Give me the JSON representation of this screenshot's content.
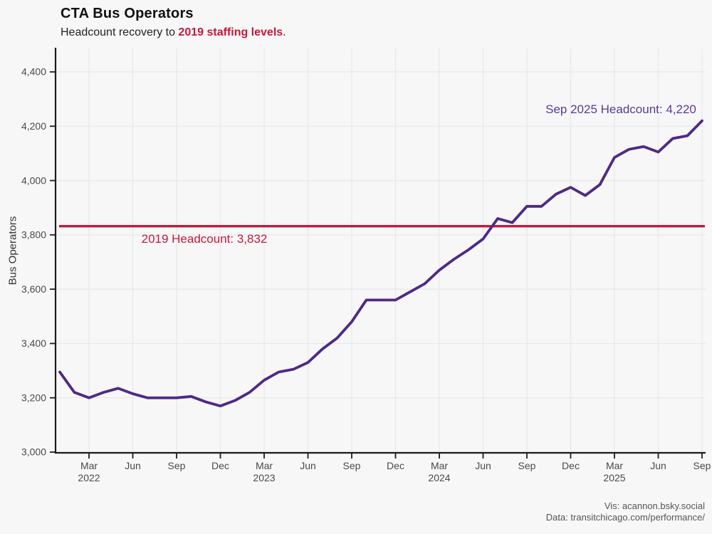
{
  "header": {
    "title": "CTA Bus Operators",
    "subtitle_prefix": "Headcount recovery to ",
    "subtitle_highlight": "2019 staffing levels",
    "subtitle_suffix": "."
  },
  "footer": {
    "vis_credit": "Vis: acannon.bsky.social",
    "data_credit": "Data: transitchicago.com/performance/"
  },
  "chart_data": {
    "type": "line",
    "title": "CTA Bus Operators",
    "xlabel": "",
    "ylabel": "Bus Operators",
    "ylim": [
      3000,
      4400
    ],
    "grid": true,
    "legend": "none",
    "x": [
      "Jan 2022",
      "Feb 2022",
      "Mar 2022",
      "Apr 2022",
      "May 2022",
      "Jun 2022",
      "Jul 2022",
      "Aug 2022",
      "Sep 2022",
      "Oct 2022",
      "Nov 2022",
      "Dec 2022",
      "Jan 2023",
      "Feb 2023",
      "Mar 2023",
      "Apr 2023",
      "May 2023",
      "Jun 2023",
      "Jul 2023",
      "Aug 2023",
      "Sep 2023",
      "Oct 2023",
      "Nov 2023",
      "Dec 2023",
      "Jan 2024",
      "Feb 2024",
      "Mar 2024",
      "Apr 2024",
      "May 2024",
      "Jun 2024",
      "Jul 2024",
      "Aug 2024",
      "Sep 2024",
      "Oct 2024",
      "Nov 2024",
      "Dec 2024",
      "Jan 2025",
      "Feb 2025",
      "Mar 2025",
      "Apr 2025",
      "May 2025",
      "Jun 2025",
      "Jul 2025",
      "Aug 2025",
      "Sep 2025"
    ],
    "values": [
      3295,
      3220,
      3200,
      3220,
      3235,
      3215,
      3200,
      3200,
      3200,
      3205,
      3185,
      3170,
      3190,
      3220,
      3265,
      3295,
      3305,
      3330,
      3380,
      3420,
      3480,
      3560,
      3560,
      3560,
      3590,
      3620,
      3670,
      3710,
      3745,
      3785,
      3860,
      3845,
      3905,
      3905,
      3950,
      3975,
      3945,
      3985,
      4085,
      4115,
      4125,
      4105,
      4155,
      4165,
      4220
    ],
    "y_ticks": [
      {
        "value": 3000,
        "label": "3,000"
      },
      {
        "value": 3200,
        "label": "3,200"
      },
      {
        "value": 3400,
        "label": "3,400"
      },
      {
        "value": 3600,
        "label": "3,600"
      },
      {
        "value": 3800,
        "label": "3,800"
      },
      {
        "value": 4000,
        "label": "4,000"
      },
      {
        "value": 4200,
        "label": "4,200"
      },
      {
        "value": 4400,
        "label": "4,400"
      }
    ],
    "x_ticks": [
      {
        "index": 2,
        "label": "Mar",
        "year": "2022"
      },
      {
        "index": 5,
        "label": "Jun"
      },
      {
        "index": 8,
        "label": "Sep"
      },
      {
        "index": 11,
        "label": "Dec"
      },
      {
        "index": 14,
        "label": "Mar",
        "year": "2023"
      },
      {
        "index": 17,
        "label": "Jun"
      },
      {
        "index": 20,
        "label": "Sep"
      },
      {
        "index": 23,
        "label": "Dec"
      },
      {
        "index": 26,
        "label": "Mar",
        "year": "2024"
      },
      {
        "index": 29,
        "label": "Jun"
      },
      {
        "index": 32,
        "label": "Sep"
      },
      {
        "index": 35,
        "label": "Dec"
      },
      {
        "index": 38,
        "label": "Mar",
        "year": "2025"
      },
      {
        "index": 41,
        "label": "Jun"
      },
      {
        "index": 44,
        "label": "Sep"
      }
    ],
    "reference_line": {
      "value": 3832,
      "label": "2019 Headcount: 3,832"
    },
    "annotation": {
      "label": "Sep 2025 Headcount: 4,220"
    },
    "colors": {
      "line": "#4e2a85",
      "annotation_text": "#5b3994",
      "reference": "#c4183c",
      "grid": "#e9e9eb",
      "axis": "#1c1c1c",
      "tick_text": "#4a4a4a",
      "background": "#f7f7f7"
    }
  }
}
